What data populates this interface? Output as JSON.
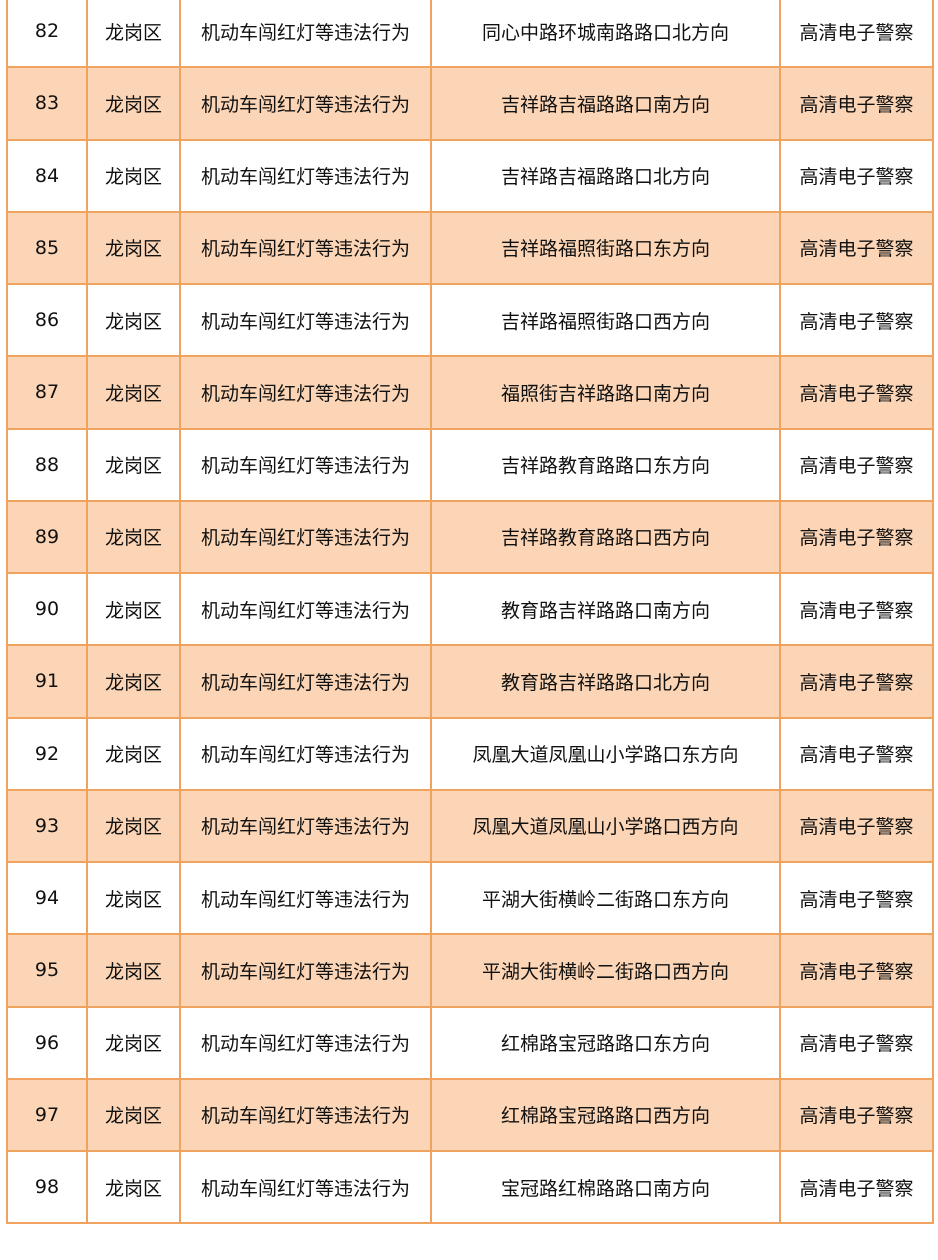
{
  "colors": {
    "border": "#F0A35E",
    "alt_row_fill": "#FBD5B5"
  },
  "rows": [
    {
      "no": "82",
      "district": "龙岗区",
      "violation": "机动车闯红灯等违法行为",
      "location": "同心中路环城南路路口北方向",
      "device": "高清电子警察"
    },
    {
      "no": "83",
      "district": "龙岗区",
      "violation": "机动车闯红灯等违法行为",
      "location": "吉祥路吉福路路口南方向",
      "device": "高清电子警察"
    },
    {
      "no": "84",
      "district": "龙岗区",
      "violation": "机动车闯红灯等违法行为",
      "location": "吉祥路吉福路路口北方向",
      "device": "高清电子警察"
    },
    {
      "no": "85",
      "district": "龙岗区",
      "violation": "机动车闯红灯等违法行为",
      "location": "吉祥路福照街路口东方向",
      "device": "高清电子警察"
    },
    {
      "no": "86",
      "district": "龙岗区",
      "violation": "机动车闯红灯等违法行为",
      "location": "吉祥路福照街路口西方向",
      "device": "高清电子警察"
    },
    {
      "no": "87",
      "district": "龙岗区",
      "violation": "机动车闯红灯等违法行为",
      "location": "福照街吉祥路路口南方向",
      "device": "高清电子警察"
    },
    {
      "no": "88",
      "district": "龙岗区",
      "violation": "机动车闯红灯等违法行为",
      "location": "吉祥路教育路路口东方向",
      "device": "高清电子警察"
    },
    {
      "no": "89",
      "district": "龙岗区",
      "violation": "机动车闯红灯等违法行为",
      "location": "吉祥路教育路路口西方向",
      "device": "高清电子警察"
    },
    {
      "no": "90",
      "district": "龙岗区",
      "violation": "机动车闯红灯等违法行为",
      "location": "教育路吉祥路路口南方向",
      "device": "高清电子警察"
    },
    {
      "no": "91",
      "district": "龙岗区",
      "violation": "机动车闯红灯等违法行为",
      "location": "教育路吉祥路路口北方向",
      "device": "高清电子警察"
    },
    {
      "no": "92",
      "district": "龙岗区",
      "violation": "机动车闯红灯等违法行为",
      "location": "凤凰大道凤凰山小学路口东方向",
      "device": "高清电子警察"
    },
    {
      "no": "93",
      "district": "龙岗区",
      "violation": "机动车闯红灯等违法行为",
      "location": "凤凰大道凤凰山小学路口西方向",
      "device": "高清电子警察"
    },
    {
      "no": "94",
      "district": "龙岗区",
      "violation": "机动车闯红灯等违法行为",
      "location": "平湖大街横岭二街路口东方向",
      "device": "高清电子警察"
    },
    {
      "no": "95",
      "district": "龙岗区",
      "violation": "机动车闯红灯等违法行为",
      "location": "平湖大街横岭二街路口西方向",
      "device": "高清电子警察"
    },
    {
      "no": "96",
      "district": "龙岗区",
      "violation": "机动车闯红灯等违法行为",
      "location": "红棉路宝冠路路口东方向",
      "device": "高清电子警察"
    },
    {
      "no": "97",
      "district": "龙岗区",
      "violation": "机动车闯红灯等违法行为",
      "location": "红棉路宝冠路路口西方向",
      "device": "高清电子警察"
    },
    {
      "no": "98",
      "district": "龙岗区",
      "violation": "机动车闯红灯等违法行为",
      "location": "宝冠路红棉路路口南方向",
      "device": "高清电子警察"
    }
  ]
}
